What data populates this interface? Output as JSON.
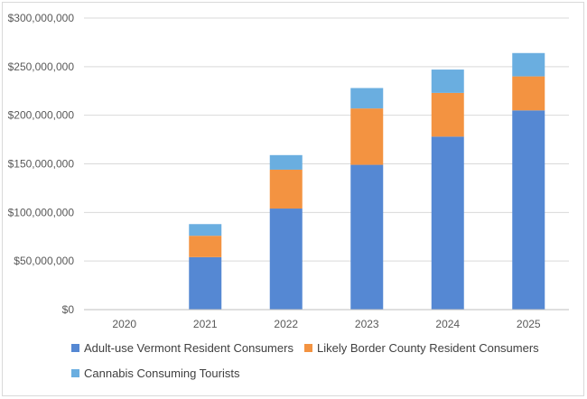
{
  "chart_data": {
    "type": "bar",
    "stacked": true,
    "categories": [
      "2020",
      "2021",
      "2022",
      "2023",
      "2024",
      "2025"
    ],
    "ylim": [
      0,
      300000000
    ],
    "yticks": [
      0,
      50000000,
      100000000,
      150000000,
      200000000,
      250000000,
      300000000
    ],
    "ytick_labels": [
      "$0",
      "$50,000,000",
      "$100,000,000",
      "$150,000,000",
      "$200,000,000",
      "$250,000,000",
      "$300,000,000"
    ],
    "grid": true,
    "legend_position": "bottom",
    "series": [
      {
        "name": "Adult-use Vermont Resident Consumers",
        "color": "#5588d3",
        "values": [
          0,
          54000000,
          104000000,
          149000000,
          178000000,
          205000000
        ]
      },
      {
        "name": "Likely Border County Resident Consumers",
        "color": "#f39341",
        "values": [
          0,
          22000000,
          40000000,
          58000000,
          45000000,
          35000000
        ]
      },
      {
        "name": "Cannabis Consuming Tourists",
        "color": "#6aaee0",
        "values": [
          0,
          12000000,
          15000000,
          21000000,
          24000000,
          24000000
        ]
      }
    ]
  }
}
